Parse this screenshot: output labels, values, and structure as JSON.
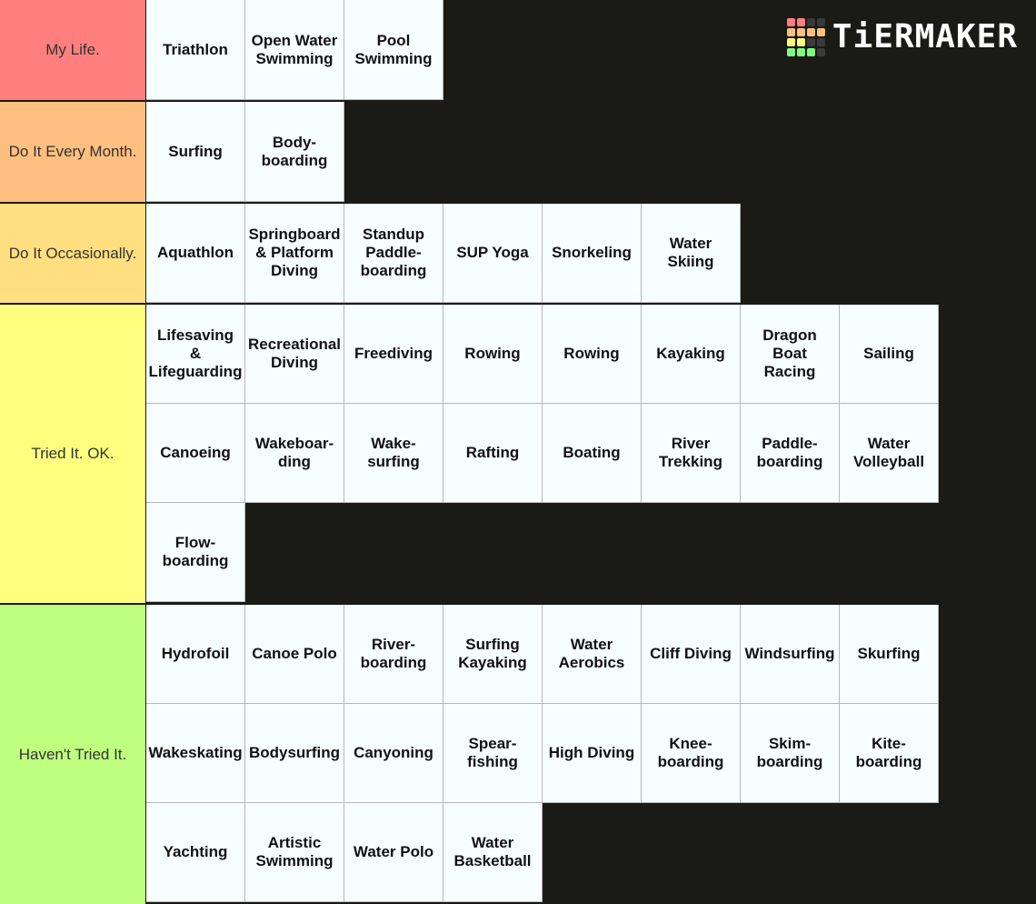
{
  "logo": {
    "text": "TiERMAKER",
    "grid_colors": [
      "#ff7f7f",
      "#ff7f7f",
      "#3a3a3a",
      "#3a3a3a",
      "#ffbf7f",
      "#ffbf7f",
      "#ffbf7f",
      "#ffbf7f",
      "#ffff7f",
      "#ffff7f",
      "#3a3a3a",
      "#3a3a3a",
      "#7fff7f",
      "#7fff7f",
      "#7fff7f",
      "#3a3a3a"
    ]
  },
  "tiers": [
    {
      "label": "My Life.",
      "color": "#ff7f7f",
      "items": [
        "Triathlon",
        "Open Water\nSwimming",
        "Pool\nSwimming"
      ]
    },
    {
      "label": "Do It Every Month.",
      "color": "#ffbf7f",
      "items": [
        "Surfing",
        "Body-\nboarding"
      ]
    },
    {
      "label": "Do It Occasionally.",
      "color": "#ffdf7f",
      "items": [
        "Aquathlon",
        "Springboard\n& Platform\nDiving",
        "Standup\nPaddle-\nboarding",
        "SUP Yoga",
        "Snorkeling",
        "Water\nSkiing"
      ]
    },
    {
      "label": "Tried It. OK.",
      "color": "#ffff7f",
      "items": [
        "Lifesaving\n&\nLifeguarding",
        "Recreational\nDiving",
        "Freediving",
        "Rowing",
        "Rowing",
        "Kayaking",
        "Dragon\nBoat\nRacing",
        "Sailing",
        "Canoeing",
        "Wakeboar-\nding",
        "Wake-\nsurfing",
        "Rafting",
        "Boating",
        "River\nTrekking",
        "Paddle-\nboarding",
        "Water\nVolleyball",
        "Flow-\nboarding"
      ]
    },
    {
      "label": "Haven't Tried It.",
      "color": "#bfff7f",
      "items": [
        "Hydrofoil",
        "Canoe Polo",
        "River-\nboarding",
        "Surfing\nKayaking",
        "Water\nAerobics",
        "Cliff Diving",
        "Windsurfing",
        "Skurfing",
        "Wakeskating",
        "Bodysurfing",
        "Canyoning",
        "Spear-\nfishing",
        "High Diving",
        "Knee-\nboarding",
        "Skim-\nboarding",
        "Kite-\nboarding",
        "Yachting",
        "Artistic\nSwimming",
        "Water Polo",
        "Water\nBasketball"
      ]
    }
  ]
}
